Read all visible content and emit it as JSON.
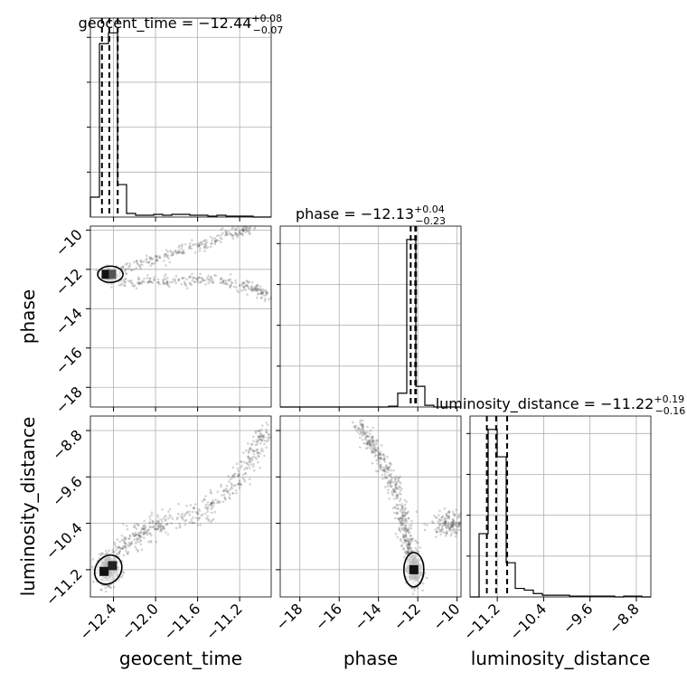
{
  "chart_data": {
    "type": "corner",
    "parameters": [
      "geocent_time",
      "phase",
      "luminosity_distance"
    ],
    "titles": {
      "geocent_time": {
        "prefix": "geocent_time = ",
        "median": "−12.44",
        "plus": "+0.08",
        "minus": "−0.07"
      },
      "phase": {
        "prefix": "phase = ",
        "median": "−12.13",
        "plus": "+0.04",
        "minus": "−0.23"
      },
      "luminosity_distance": {
        "prefix": "luminosity_distance = ",
        "median": "−11.22",
        "plus": "+0.19",
        "minus": "−0.16"
      }
    },
    "axis_labels": {
      "geocent_time": "geocent_time",
      "phase": "phase",
      "luminosity_distance": "luminosity_distance"
    },
    "ranges": {
      "geocent_time": [
        -12.62,
        -10.9
      ],
      "phase": [
        -19.0,
        -9.8
      ],
      "luminosity_distance": [
        -11.67,
        -8.55
      ]
    },
    "ticks": {
      "geocent_time": [
        "−12.4",
        "−12.0",
        "−11.6",
        "−11.2"
      ],
      "phase": [
        "−18",
        "−16",
        "−14",
        "−12",
        "−10"
      ],
      "luminosity_distance": [
        "−11.2",
        "−10.4",
        "−9.6",
        "−8.8"
      ]
    },
    "tick_values": {
      "geocent_time": [
        -12.4,
        -12.0,
        -11.6,
        -11.2
      ],
      "phase": [
        -18,
        -16,
        -14,
        -12,
        -10
      ],
      "luminosity_distance": [
        -11.2,
        -10.4,
        -9.6,
        -8.8
      ]
    },
    "quantile_lines": {
      "geocent_time": [
        -12.51,
        -12.44,
        -12.36
      ],
      "phase": [
        -12.36,
        -12.13,
        -12.09
      ],
      "luminosity_distance": [
        -11.38,
        -11.22,
        -11.03
      ]
    },
    "histograms": {
      "geocent_time": {
        "edges": [
          -12.62,
          -12.534,
          -12.448,
          -12.362,
          -12.276,
          -12.19,
          -12.104,
          -12.018,
          -11.932,
          -11.846,
          -11.76,
          -11.674,
          -11.588,
          -11.502,
          -11.416,
          -11.33,
          -11.244,
          -11.158,
          -11.072,
          -10.986,
          -10.9
        ],
        "counts": [
          0.11,
          0.96,
          1.02,
          0.18,
          0.02,
          0.01,
          0.01,
          0.015,
          0.01,
          0.015,
          0.015,
          0.01,
          0.01,
          0.005,
          0.01,
          0.005,
          0.005,
          0.005,
          0.0,
          0.0
        ]
      },
      "phase": {
        "edges": [
          -19.0,
          -18.54,
          -18.08,
          -17.62,
          -17.16,
          -16.7,
          -16.24,
          -15.78,
          -15.32,
          -14.86,
          -14.4,
          -13.94,
          -13.48,
          -13.02,
          -12.56,
          -12.1,
          -11.64,
          -11.18,
          -10.72,
          -10.26,
          -9.8
        ],
        "counts": [
          0,
          0,
          0,
          0,
          0,
          0,
          0,
          0,
          0,
          0,
          0,
          0,
          0.005,
          0.08,
          0.97,
          0.12,
          0.01,
          0,
          0,
          0
        ]
      },
      "luminosity_distance": {
        "edges": [
          -11.67,
          -11.514,
          -11.358,
          -11.202,
          -11.046,
          -10.89,
          -10.734,
          -10.578,
          -10.422,
          -10.266,
          -10.11,
          -9.954,
          -9.798,
          -9.642,
          -9.486,
          -9.33,
          -9.174,
          -9.018,
          -8.862,
          -8.706,
          -8.55
        ],
        "counts": [
          0.0,
          0.37,
          0.98,
          0.82,
          0.2,
          0.05,
          0.04,
          0.02,
          0.01,
          0.01,
          0.01,
          0.005,
          0.005,
          0.005,
          0.005,
          0.005,
          0.0,
          0.005,
          0.005,
          0.0
        ]
      }
    },
    "scatter": {
      "geocent_time_vs_phase": {
        "blob": {
          "x": -12.44,
          "y": -12.25
        },
        "branches": [
          {
            "name": "upper",
            "x": [
              -12.5,
              -12.2,
              -11.9,
              -11.6,
              -11.3,
              -11.1
            ],
            "y": [
              -12.3,
              -11.8,
              -11.3,
              -10.8,
              -10.2,
              -9.9
            ]
          },
          {
            "name": "lower",
            "x": [
              -12.45,
              -12.2,
              -11.9,
              -11.6,
              -11.3,
              -11.1,
              -10.95
            ],
            "y": [
              -12.6,
              -12.65,
              -12.6,
              -12.5,
              -12.6,
              -12.9,
              -13.3
            ]
          }
        ]
      },
      "geocent_time_vs_luminosity_distance": {
        "blob": {
          "x": -12.45,
          "y": -11.2
        },
        "trend": {
          "x": [
            -12.5,
            -12.3,
            -12.0,
            -11.6,
            -11.3,
            -11.1,
            -10.95
          ],
          "y": [
            -11.2,
            -10.75,
            -10.45,
            -10.25,
            -9.85,
            -9.3,
            -8.75
          ]
        }
      },
      "phase_vs_luminosity_distance": {
        "blob": {
          "x": -12.2,
          "y": -11.2
        },
        "arc": {
          "x": [
            -15.0,
            -14.2,
            -13.4,
            -12.8,
            -12.5,
            -12.3
          ],
          "y": [
            -8.7,
            -9.1,
            -9.6,
            -10.2,
            -10.7,
            -11.1
          ]
        }
      }
    },
    "grid": true,
    "colors": {
      "points": "#555555",
      "lines": "#000000",
      "grid": "#b0b0b0"
    }
  }
}
